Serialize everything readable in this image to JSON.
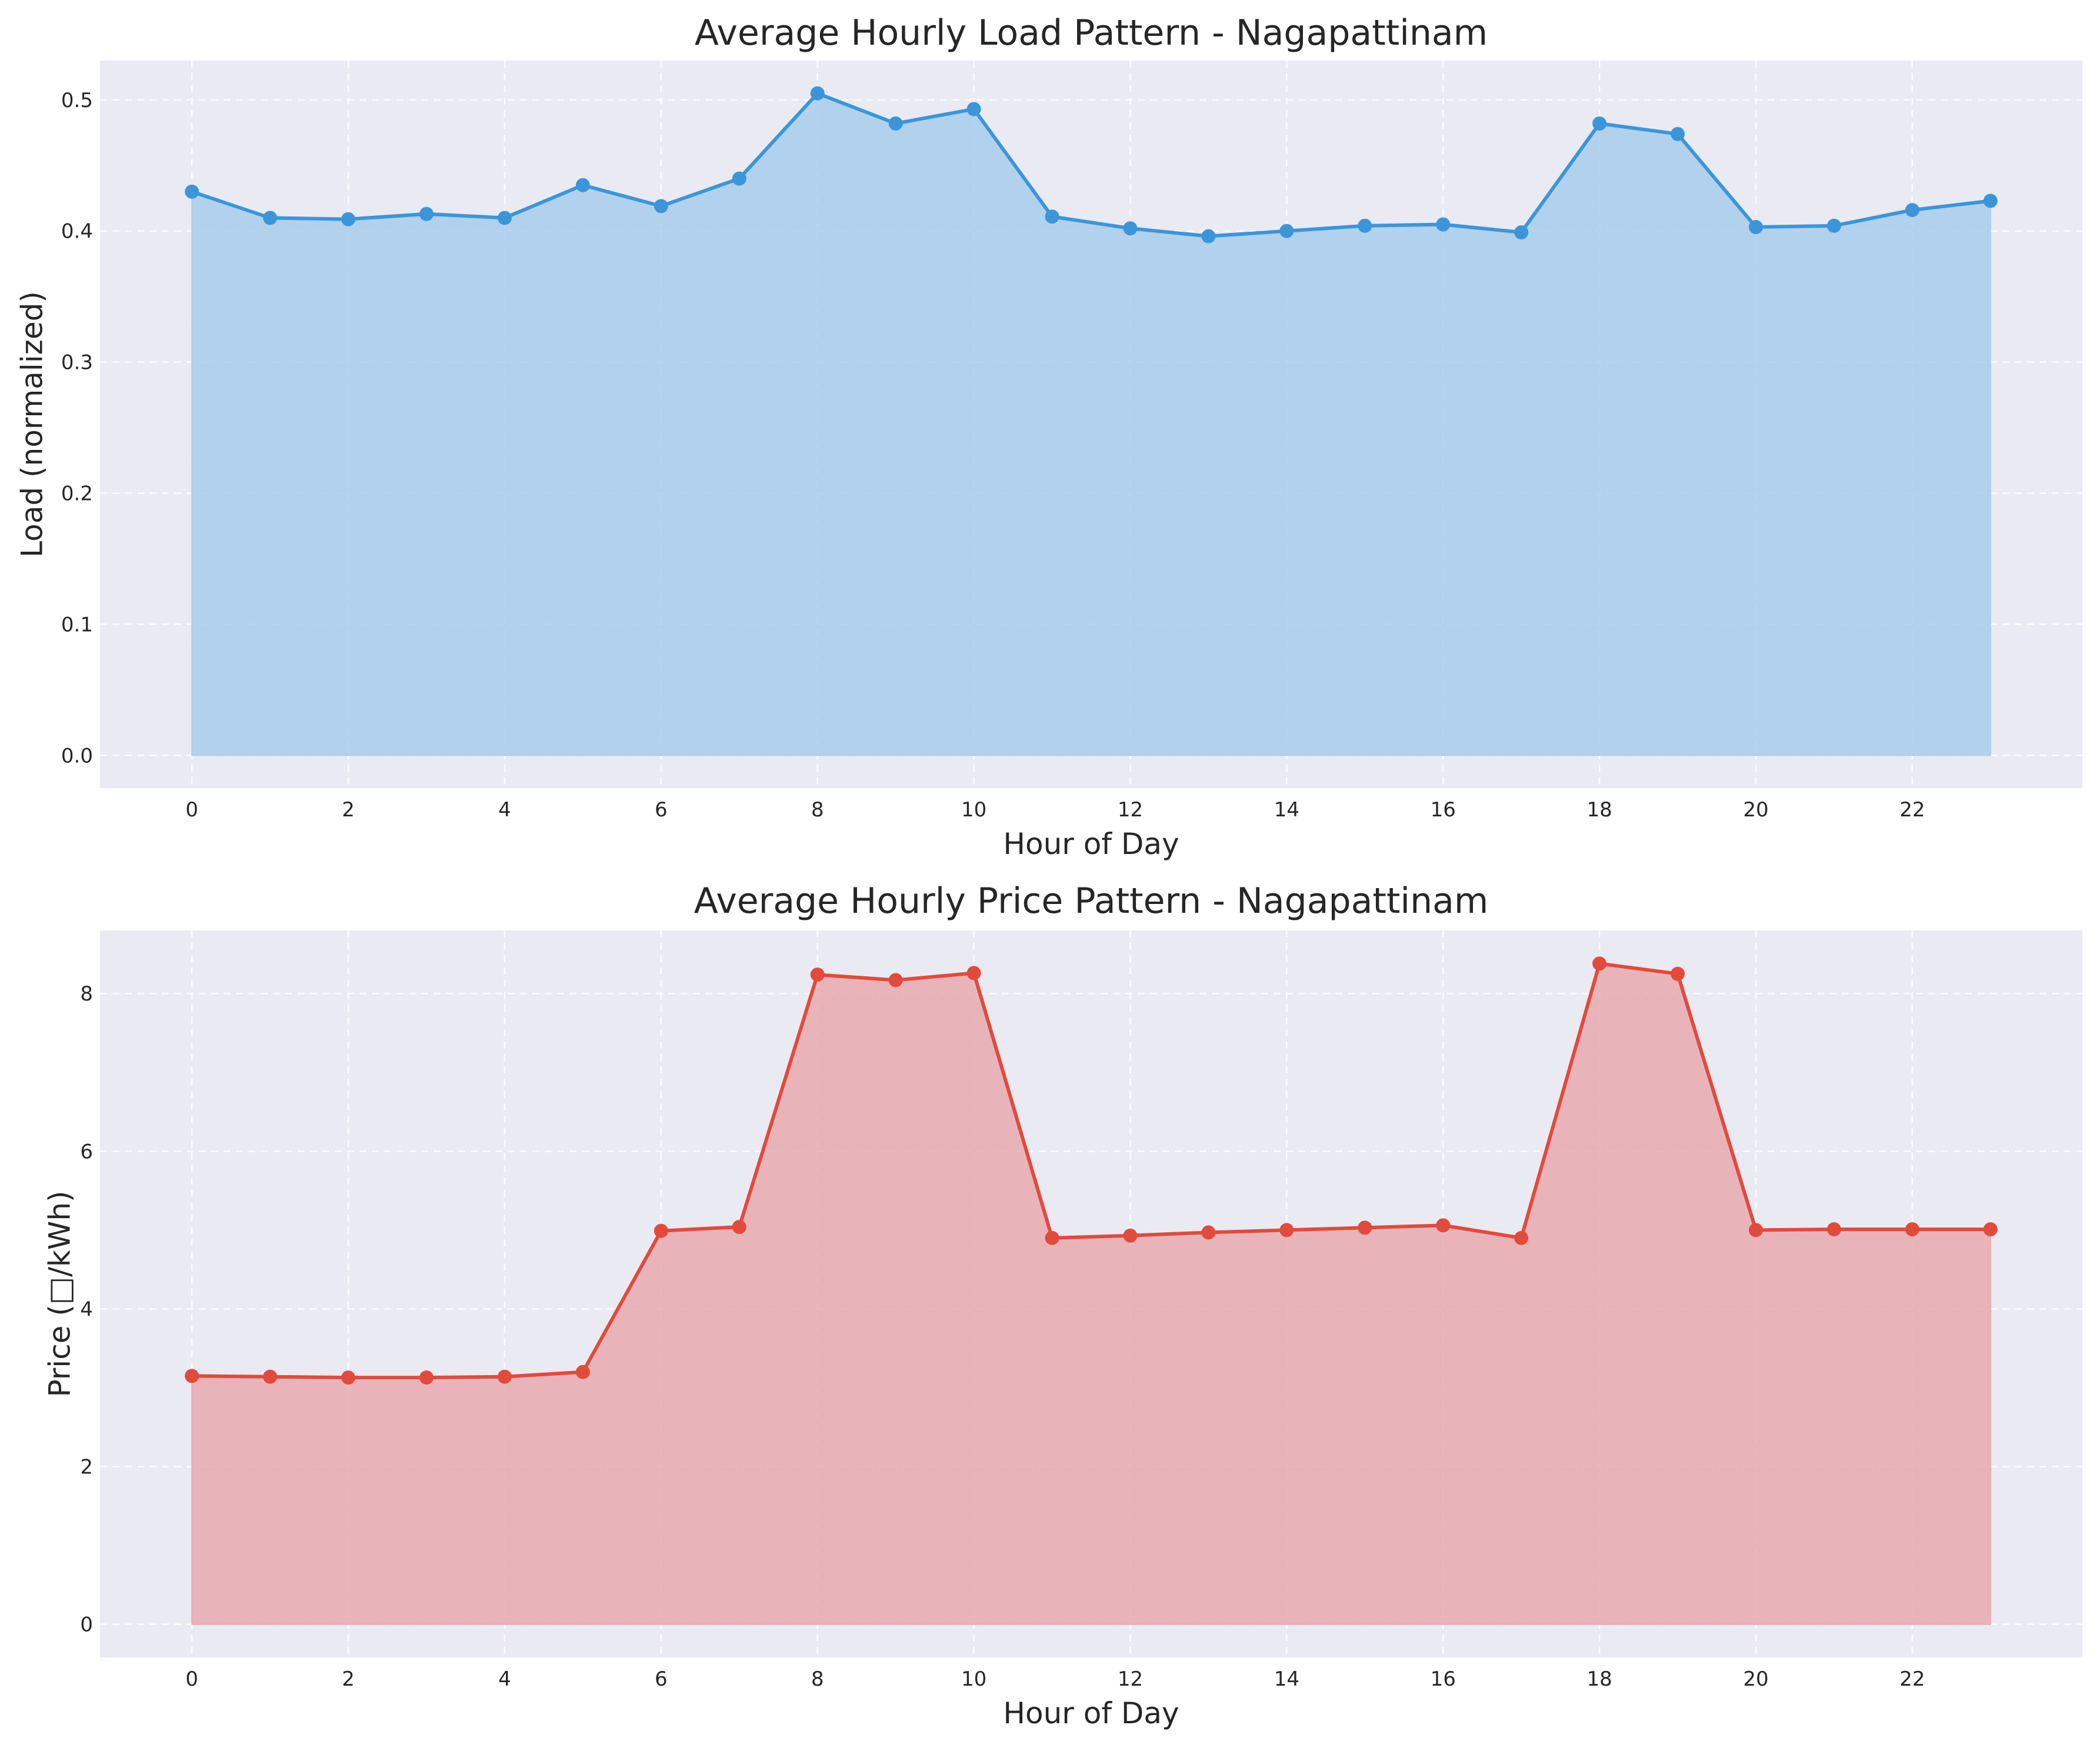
{
  "chart_data": [
    {
      "type": "area",
      "title": "Average Hourly Load Pattern - Nagapattinam",
      "xlabel": "Hour of Day",
      "ylabel": "Load (normalized)",
      "x": [
        0,
        1,
        2,
        3,
        4,
        5,
        6,
        7,
        8,
        9,
        10,
        11,
        12,
        13,
        14,
        15,
        16,
        17,
        18,
        19,
        20,
        21,
        22,
        23
      ],
      "values": [
        0.43,
        0.41,
        0.409,
        0.413,
        0.41,
        0.435,
        0.419,
        0.44,
        0.505,
        0.482,
        0.493,
        0.411,
        0.402,
        0.396,
        0.4,
        0.404,
        0.405,
        0.399,
        0.482,
        0.474,
        0.403,
        0.404,
        0.416,
        0.423
      ],
      "xticks": [
        "0",
        "2",
        "4",
        "6",
        "8",
        "10",
        "12",
        "14",
        "16",
        "18",
        "20",
        "22"
      ],
      "yticks": [
        "0.0",
        "0.1",
        "0.2",
        "0.3",
        "0.4",
        "0.5"
      ],
      "xlim": [
        -1.175,
        24.175
      ],
      "ylim": [
        -0.025,
        0.53
      ],
      "grid": true,
      "color": "#3a96d9",
      "fill_color": "#a7cdec"
    },
    {
      "type": "area",
      "title": "Average Hourly Price Pattern - Nagapattinam",
      "xlabel": "Hour of Day",
      "ylabel": "Price (□/kWh)",
      "x": [
        0,
        1,
        2,
        3,
        4,
        5,
        6,
        7,
        8,
        9,
        10,
        11,
        12,
        13,
        14,
        15,
        16,
        17,
        18,
        19,
        20,
        21,
        22,
        23
      ],
      "values": [
        3.15,
        3.14,
        3.13,
        3.13,
        3.14,
        3.2,
        4.99,
        5.04,
        8.24,
        8.17,
        8.26,
        4.9,
        4.93,
        4.97,
        5.0,
        5.03,
        5.06,
        4.9,
        8.38,
        8.25,
        5.0,
        5.01,
        5.01,
        5.01
      ],
      "xticks": [
        "0",
        "2",
        "4",
        "6",
        "8",
        "10",
        "12",
        "14",
        "16",
        "18",
        "20",
        "22"
      ],
      "yticks": [
        "0",
        "2",
        "4",
        "6",
        "8"
      ],
      "xlim": [
        -1.175,
        24.175
      ],
      "ylim": [
        -0.42,
        8.8
      ],
      "grid": true,
      "color": "#e24a3b",
      "fill_color": "#e8aaaf"
    }
  ]
}
